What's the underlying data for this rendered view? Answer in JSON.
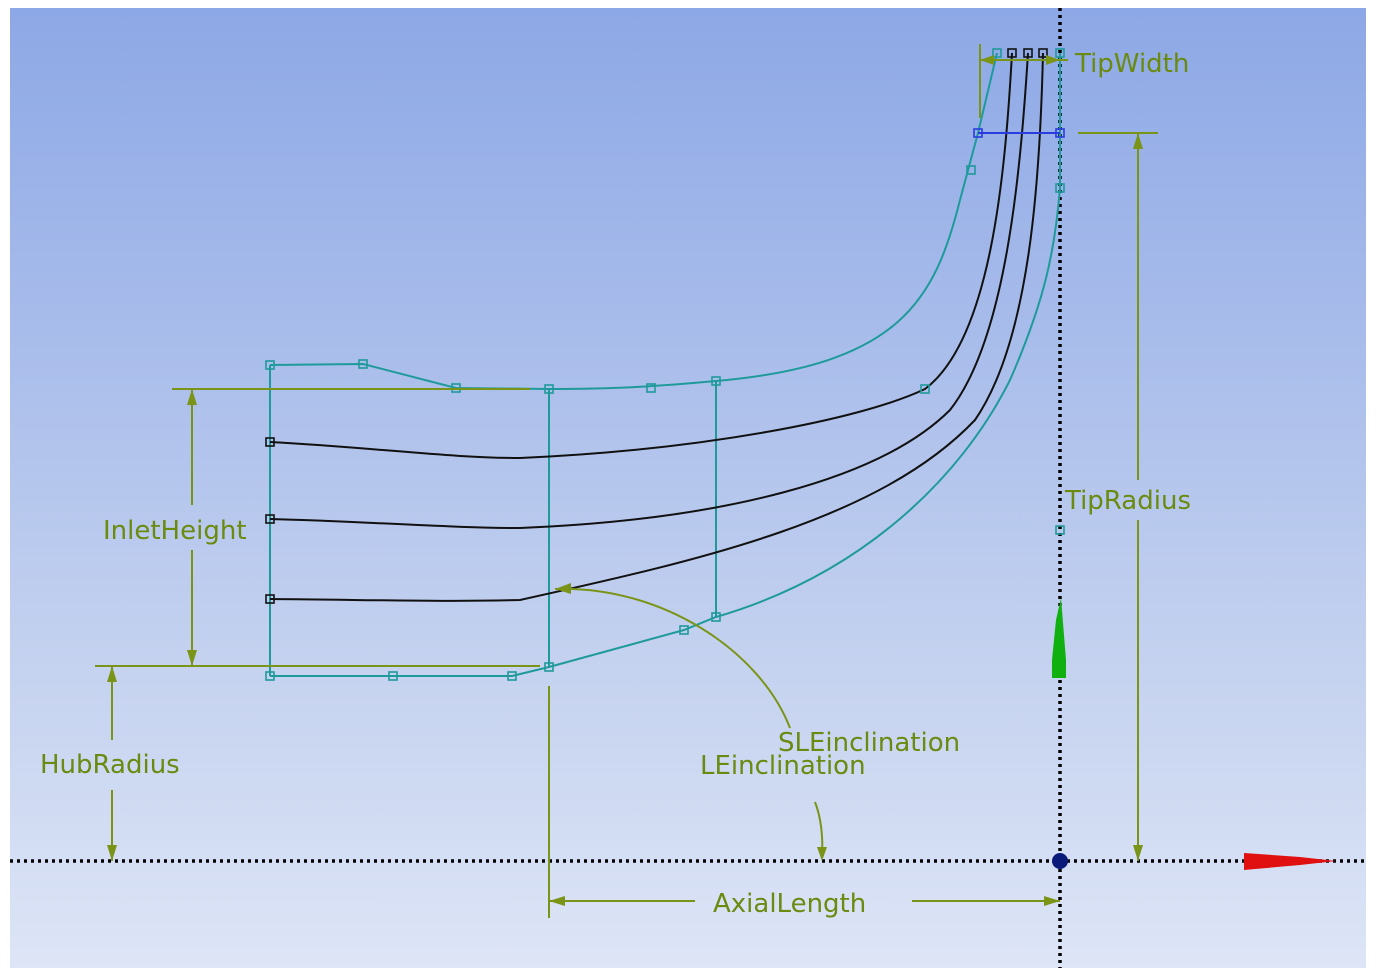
{
  "dimensions": {
    "tip_width": "TipWidth",
    "tip_radius": "TipRadius",
    "inlet_height": "InletHeight",
    "hub_radius": "HubRadius",
    "sle_inclination": "SLEinclination",
    "le_inclination": "LEinclination",
    "axial_length": "AxialLength"
  },
  "colors": {
    "dimension": "#7a9418",
    "hub_shroud_curve": "#1f9a9a",
    "mid_curve": "#111111",
    "tip_line": "#2a3be0",
    "x_axis_triad": "#e01010",
    "y_axis_triad": "#10b010",
    "origin": "#0a1a7a"
  },
  "icons": {
    "origin": "origin-dot-icon",
    "x_triad": "x-axis-arrow-icon",
    "y_triad": "y-axis-arrow-icon"
  }
}
